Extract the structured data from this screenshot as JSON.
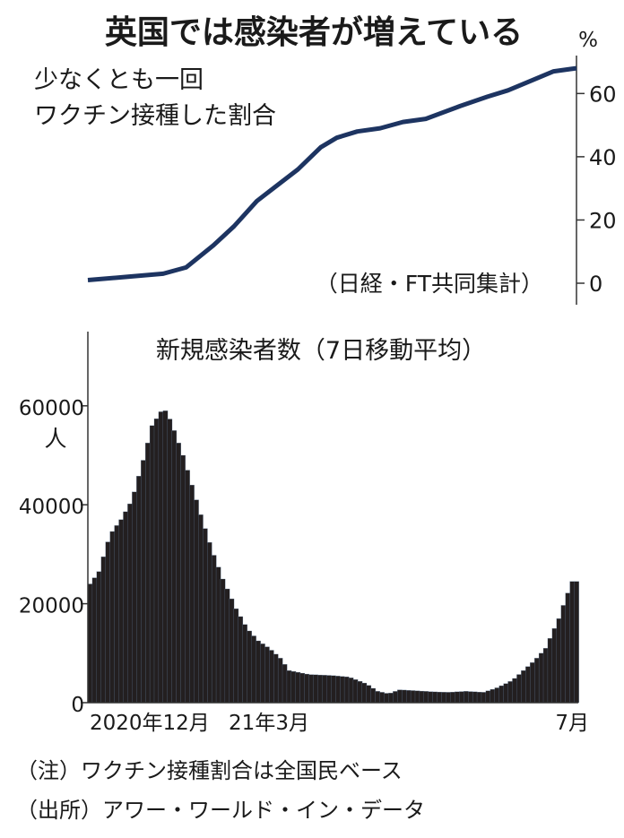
{
  "headline": "英国では感染者が増えている",
  "chart_data": [
    {
      "type": "line",
      "title_lines": [
        "少なくとも一回",
        "ワクチン接種した割合"
      ],
      "source_note": "（日経・FT共同集計）",
      "unit": "%",
      "ylim": [
        0,
        72
      ],
      "yticks": [
        0,
        20,
        40,
        60
      ],
      "x_range": [
        "2020-12-08",
        "2021-07-10"
      ],
      "series": [
        {
          "color": "#1d3461",
          "points": [
            [
              "2020-12-08",
              1
            ],
            [
              "2020-12-25",
              2
            ],
            [
              "2021-01-10",
              3
            ],
            [
              "2021-01-20",
              5
            ],
            [
              "2021-02-01",
              12
            ],
            [
              "2021-02-10",
              18
            ],
            [
              "2021-02-20",
              26
            ],
            [
              "2021-03-01",
              31
            ],
            [
              "2021-03-10",
              36
            ],
            [
              "2021-03-20",
              43
            ],
            [
              "2021-03-27",
              46
            ],
            [
              "2021-04-05",
              48
            ],
            [
              "2021-04-15",
              49
            ],
            [
              "2021-04-25",
              51
            ],
            [
              "2021-05-05",
              52
            ],
            [
              "2021-05-20",
              56
            ],
            [
              "2021-06-01",
              59
            ],
            [
              "2021-06-10",
              61
            ],
            [
              "2021-06-20",
              64
            ],
            [
              "2021-06-30",
              67
            ],
            [
              "2021-07-10",
              68
            ]
          ]
        }
      ]
    },
    {
      "type": "bar",
      "title": "新規感染者数（7日移動平均）",
      "unit": "人",
      "ylim": [
        0,
        75000
      ],
      "yticks": [
        0,
        20000,
        40000,
        60000
      ],
      "xtick_labels": [
        "2020年12月",
        "21年3月",
        "7月"
      ],
      "x_range": [
        "2020-12-01",
        "2021-07-10"
      ],
      "bar_color": "#231f20",
      "bar_edge": "#6b86a7",
      "series": [
        {
          "name": "",
          "points": [
            [
              "2020-12-01",
              24000
            ],
            [
              "2020-12-05",
              26500
            ],
            [
              "2020-12-10",
              34000
            ],
            [
              "2020-12-15",
              37000
            ],
            [
              "2020-12-20",
              41000
            ],
            [
              "2020-12-25",
              49000
            ],
            [
              "2020-12-29",
              56000
            ],
            [
              "2021-01-03",
              59500
            ],
            [
              "2021-01-05",
              58500
            ],
            [
              "2021-01-08",
              55000
            ],
            [
              "2021-01-12",
              50000
            ],
            [
              "2021-01-16",
              44000
            ],
            [
              "2021-01-20",
              38000
            ],
            [
              "2021-01-25",
              31000
            ],
            [
              "2021-01-30",
              25000
            ],
            [
              "2021-02-05",
              19000
            ],
            [
              "2021-02-10",
              15000
            ],
            [
              "2021-02-15",
              12500
            ],
            [
              "2021-02-20",
              11000
            ],
            [
              "2021-02-25",
              9000
            ],
            [
              "2021-03-01",
              6500
            ],
            [
              "2021-03-10",
              5700
            ],
            [
              "2021-03-20",
              5500
            ],
            [
              "2021-03-28",
              5200
            ],
            [
              "2021-04-05",
              3800
            ],
            [
              "2021-04-10",
              2300
            ],
            [
              "2021-04-15",
              1800
            ],
            [
              "2021-04-20",
              2600
            ],
            [
              "2021-04-28",
              2400
            ],
            [
              "2021-05-05",
              2200
            ],
            [
              "2021-05-12",
              2100
            ],
            [
              "2021-05-20",
              2300
            ],
            [
              "2021-05-28",
              2100
            ],
            [
              "2021-06-03",
              3000
            ],
            [
              "2021-06-10",
              4500
            ],
            [
              "2021-06-15",
              6500
            ],
            [
              "2021-06-20",
              8500
            ],
            [
              "2021-06-25",
              11000
            ],
            [
              "2021-06-28",
              14000
            ],
            [
              "2021-07-01",
              17000
            ],
            [
              "2021-07-04",
              21000
            ],
            [
              "2021-07-07",
              24500
            ]
          ]
        }
      ]
    }
  ],
  "notes": [
    "（注）ワクチン接種割合は全国民ベース",
    "（出所）アワー・ワールド・イン・データ"
  ]
}
